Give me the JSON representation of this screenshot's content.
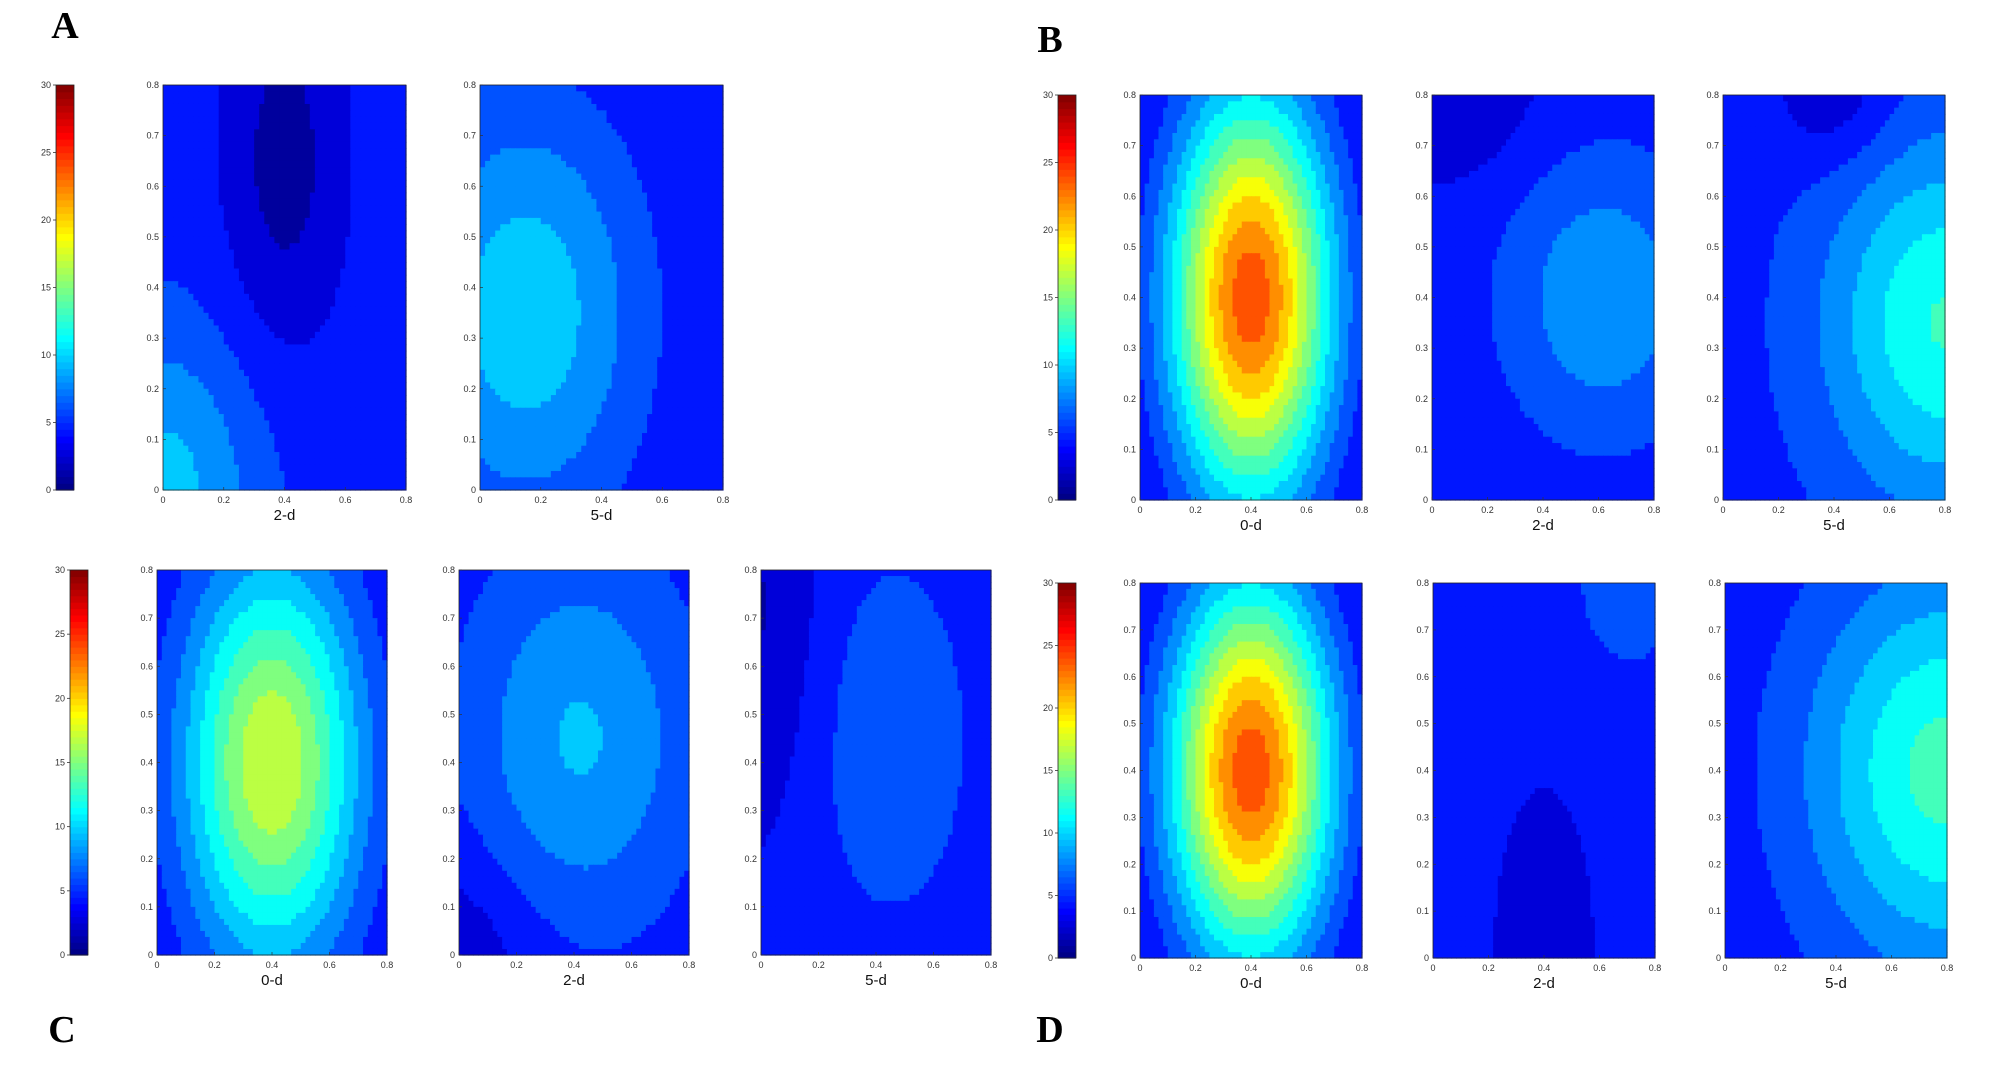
{
  "chart_data": {
    "type": "heatmap",
    "colormap": "jet",
    "colorbar_ticks": [
      "0",
      "5",
      "10",
      "15",
      "20",
      "25",
      "30"
    ],
    "clim": [
      0,
      30
    ],
    "xlim": [
      0,
      0.8
    ],
    "ylim": [
      0,
      0.8
    ],
    "x_ticks": [
      "0",
      "0.2",
      "0.4",
      "0.6",
      "0.8"
    ],
    "y_ticks": [
      "0",
      "0.1",
      "0.2",
      "0.3",
      "0.4",
      "0.5",
      "0.6",
      "0.7",
      "0.8"
    ],
    "panels": [
      {
        "letter": "A",
        "maps": [
          {
            "label": "2-d",
            "fields": [
              {
                "x": 0.4,
                "y": 0.65,
                "amp": -3.5,
                "sx": 0.14,
                "sy": 0.26
              },
              {
                "x": 0.0,
                "y": 0.0,
                "amp": 5,
                "sx": 0.22,
                "sy": 0.22
              }
            ],
            "base": 4.5
          },
          {
            "label": "5-d",
            "fields": [
              {
                "x": 0.15,
                "y": 0.35,
                "amp": 6.5,
                "sx": 0.28,
                "sy": 0.3
              }
            ],
            "base": 3.5
          }
        ]
      },
      {
        "letter": "B",
        "maps": [
          {
            "label": "0-d",
            "fields": [
              {
                "x": 0.4,
                "y": 0.4,
                "amp": 22,
                "sx": 0.21,
                "sy": 0.29
              }
            ],
            "base": 2.0
          },
          {
            "label": "2-d",
            "fields": [
              {
                "x": 0.62,
                "y": 0.4,
                "amp": 4.5,
                "sx": 0.26,
                "sy": 0.2
              },
              {
                "x": 0.1,
                "y": 0.8,
                "amp": -2,
                "sx": 0.2,
                "sy": 0.12
              }
            ],
            "base": 4.0
          },
          {
            "label": "5-d",
            "fields": [
              {
                "x": 0.8,
                "y": 0.35,
                "amp": 8,
                "sx": 0.3,
                "sy": 0.25
              },
              {
                "x": 0.4,
                "y": 0.8,
                "amp": -2.5,
                "sx": 0.15,
                "sy": 0.1
              }
            ],
            "base": 4.5
          }
        ]
      },
      {
        "letter": "C",
        "maps": [
          {
            "label": "0-d",
            "fields": [
              {
                "x": 0.4,
                "y": 0.4,
                "amp": 14.5,
                "sx": 0.22,
                "sy": 0.3
              }
            ],
            "base": 3.0
          },
          {
            "label": "2-d",
            "fields": [
              {
                "x": 0.42,
                "y": 0.45,
                "amp": 5,
                "sx": 0.28,
                "sy": 0.28
              },
              {
                "x": 0.0,
                "y": 0.0,
                "amp": -2,
                "sx": 0.2,
                "sy": 0.15
              }
            ],
            "base": 4.0
          },
          {
            "label": "5-d",
            "fields": [
              {
                "x": 0.45,
                "y": 0.45,
                "amp": 2.5,
                "sx": 0.22,
                "sy": 0.3
              },
              {
                "x": 0.0,
                "y": 0.7,
                "amp": -2.5,
                "sx": 0.15,
                "sy": 0.3
              }
            ],
            "base": 4.0
          }
        ]
      },
      {
        "letter": "D",
        "maps": [
          {
            "label": "0-d",
            "fields": [
              {
                "x": 0.4,
                "y": 0.4,
                "amp": 22,
                "sx": 0.21,
                "sy": 0.29
              }
            ],
            "base": 2.0
          },
          {
            "label": "2-d",
            "fields": [
              {
                "x": 0.4,
                "y": 0.0,
                "amp": -2,
                "sx": 0.15,
                "sy": 0.3
              },
              {
                "x": 0.7,
                "y": 0.8,
                "amp": 1.5,
                "sx": 0.15,
                "sy": 0.15
              }
            ],
            "base": 4.5
          },
          {
            "label": "5-d",
            "fields": [
              {
                "x": 0.8,
                "y": 0.4,
                "amp": 9,
                "sx": 0.35,
                "sy": 0.3
              }
            ],
            "base": 4.0
          }
        ]
      }
    ]
  },
  "colors": {
    "jet": [
      "#00007f",
      "#0000ff",
      "#007fff",
      "#00ffff",
      "#7fff7f",
      "#ffff00",
      "#ff7f00",
      "#ff0000",
      "#7f0000"
    ]
  }
}
